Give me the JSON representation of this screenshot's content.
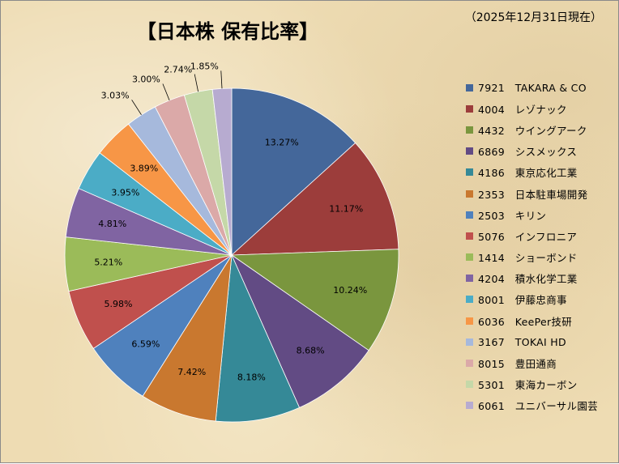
{
  "title": "【日本株 保有比率】",
  "date_note": "（2025年12月31日現在）",
  "chart_data": {
    "type": "pie",
    "start": "12 o'clock",
    "direction": "clockwise",
    "legend_position": "right",
    "slices": [
      {
        "code": "7921",
        "name": "TAKARA & CO",
        "value": 13.27,
        "label": "13.27%",
        "color": "#44679a"
      },
      {
        "code": "4004",
        "name": "レゾナック",
        "value": 11.17,
        "label": "11.17%",
        "color": "#9c3d3b"
      },
      {
        "code": "4432",
        "name": "ウイングアーク",
        "value": 10.24,
        "label": "10.24%",
        "color": "#7a963e"
      },
      {
        "code": "6869",
        "name": "シスメックス",
        "value": 8.68,
        "label": "8.68%",
        "color": "#624b84"
      },
      {
        "code": "4186",
        "name": "東京応化工業",
        "value": 8.18,
        "label": "8.18%",
        "color": "#358997"
      },
      {
        "code": "2353",
        "name": "日本駐車場開発",
        "value": 7.42,
        "label": "7.42%",
        "color": "#c9782f"
      },
      {
        "code": "2503",
        "name": "キリン",
        "value": 6.59,
        "label": "6.59%",
        "color": "#4f81bd"
      },
      {
        "code": "5076",
        "name": "インフロニア",
        "value": 5.98,
        "label": "5.98%",
        "color": "#c0504d"
      },
      {
        "code": "1414",
        "name": "ショーボンド",
        "value": 5.21,
        "label": "5.21%",
        "color": "#9bbb59"
      },
      {
        "code": "4204",
        "name": "積水化学工業",
        "value": 4.81,
        "label": "4.81%",
        "color": "#8064a2"
      },
      {
        "code": "8001",
        "name": "伊藤忠商事",
        "value": 3.95,
        "label": "3.95%",
        "color": "#4bacc6"
      },
      {
        "code": "6036",
        "name": "KeePer技研",
        "value": 3.89,
        "label": "3.89%",
        "color": "#f79646"
      },
      {
        "code": "3167",
        "name": "TOKAI HD",
        "value": 3.03,
        "label": "3.03%",
        "color": "#a6b9dc"
      },
      {
        "code": "8015",
        "name": "豊田通商",
        "value": 3.0,
        "label": "3.00%",
        "color": "#dba9a8"
      },
      {
        "code": "5301",
        "name": "東海カーボン",
        "value": 2.74,
        "label": "2.74%",
        "color": "#c5d8a8"
      },
      {
        "code": "6061",
        "name": "ユニバーサル園芸",
        "value": 1.85,
        "label": "1.85%",
        "color": "#b7abd0"
      }
    ]
  }
}
